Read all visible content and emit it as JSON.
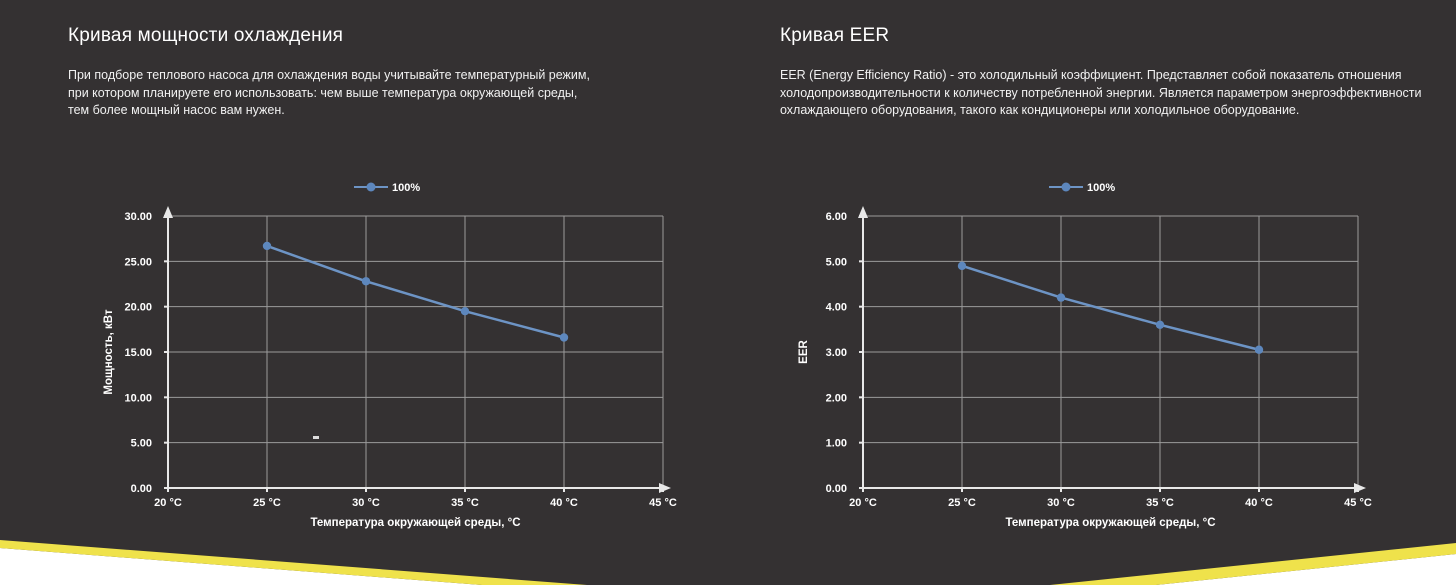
{
  "page": {
    "background_color": "#343132",
    "text_color": "#ffffff",
    "footer_yellow": "#efe24b",
    "footer_white": "#ffffff"
  },
  "sections": [
    {
      "title": "Кривая мощности охлаждения",
      "description_lines": [
        "При подборе теплового насоса для охлаждения воды учитывайте температурный режим,",
        "при котором планируете его использовать: чем выше температура окружающей среды,",
        "тем более мощный насос вам нужен."
      ]
    },
    {
      "title": "Кривая EER",
      "description_lines": [
        "EER (Energy Efficiency Ratio) - это холодильный коэффициент. Представляет собой показатель отношения",
        "холодопроизводительности к количеству потребленной энергии. Является параметром энергоэффективности",
        "охлаждающего оборудования, такого как кондиционеры или холодильное оборудование."
      ]
    }
  ],
  "chart_data": [
    {
      "type": "line",
      "legend": "100%",
      "legend_position": "top-center",
      "grid": true,
      "series": [
        {
          "name": "100%",
          "x": [
            25,
            30,
            35,
            40
          ],
          "values": [
            26.7,
            22.8,
            19.5,
            16.6
          ]
        }
      ],
      "xlabel": "Температура окружающей среды, °C",
      "ylabel": "Мощность, кВт",
      "xlim": [
        20,
        45
      ],
      "ylim": [
        0,
        30
      ],
      "x_tick_values": [
        20,
        25,
        30,
        35,
        40,
        45
      ],
      "x_tick_labels": [
        "20 °C",
        "25 °C",
        "30 °C",
        "35 °C",
        "40 °C",
        "45 °C"
      ],
      "y_tick_values": [
        0,
        5,
        10,
        15,
        20,
        25,
        30
      ],
      "y_tick_labels": [
        "0.00",
        "5.00",
        "10.00",
        "15.00",
        "20.00",
        "25.00",
        "30.00"
      ],
      "line_color": "#6d94c5",
      "marker_color": "#5d87bd",
      "grid_color": "#9b9b9b",
      "axis_color": "#e8e8e8",
      "label_color": "#ffffff"
    },
    {
      "type": "line",
      "legend": "100%",
      "legend_position": "top-center",
      "grid": true,
      "series": [
        {
          "name": "100%",
          "x": [
            25,
            30,
            35,
            40
          ],
          "values": [
            4.9,
            4.2,
            3.6,
            3.05
          ]
        }
      ],
      "xlabel": "Температура окружающей среды, °C",
      "ylabel": "EER",
      "xlim": [
        20,
        45
      ],
      "ylim": [
        0,
        6
      ],
      "x_tick_values": [
        20,
        25,
        30,
        35,
        40,
        45
      ],
      "x_tick_labels": [
        "20 °C",
        "25 °C",
        "30 °C",
        "35 °C",
        "40 °C",
        "45 °C"
      ],
      "y_tick_values": [
        0,
        1,
        2,
        3,
        4,
        5,
        6
      ],
      "y_tick_labels": [
        "0.00",
        "1.00",
        "2.00",
        "3.00",
        "4.00",
        "5.00",
        "6.00"
      ],
      "line_color": "#6d94c5",
      "marker_color": "#5d87bd",
      "grid_color": "#9b9b9b",
      "axis_color": "#e8e8e8",
      "label_color": "#ffffff"
    }
  ]
}
